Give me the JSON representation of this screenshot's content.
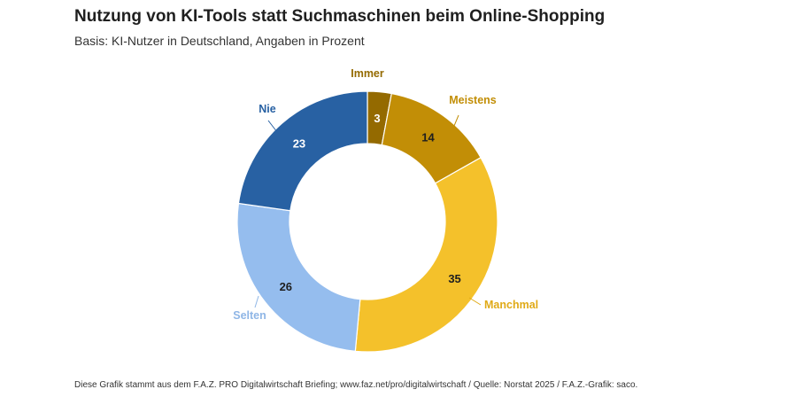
{
  "chart_data": {
    "type": "pie",
    "title": "Nutzung von KI-Tools statt Suchmaschinen beim Online-Shopping",
    "subtitle": "Basis: KI-Nutzer in Deutschland, Angaben in Prozent",
    "unit": "Prozent",
    "donut": true,
    "slices": [
      {
        "label": "Immer",
        "value": 3,
        "color": "#946a00",
        "label_color": "#946a00",
        "value_color": "#ffffff"
      },
      {
        "label": "Meistens",
        "value": 14,
        "color": "#c28e06",
        "label_color": "#c28e06",
        "value_color": "#1f1f1f"
      },
      {
        "label": "Manchmal",
        "value": 35,
        "color": "#f4c12b",
        "label_color": "#e0aa17",
        "value_color": "#1f1f1f"
      },
      {
        "label": "Selten",
        "value": 26,
        "color": "#95bdee",
        "label_color": "#8fb6e6",
        "value_color": "#1f1f1f"
      },
      {
        "label": "Nie",
        "value": 23,
        "color": "#2861a3",
        "label_color": "#2861a3",
        "value_color": "#ffffff"
      }
    ]
  },
  "footer": "Diese Grafik stammt aus dem F.A.Z. PRO Digitalwirtschaft Briefing; www.faz.net/pro/digitalwirtschaft / Quelle: Norstat 2025 / F.A.Z.-Grafik: saco."
}
